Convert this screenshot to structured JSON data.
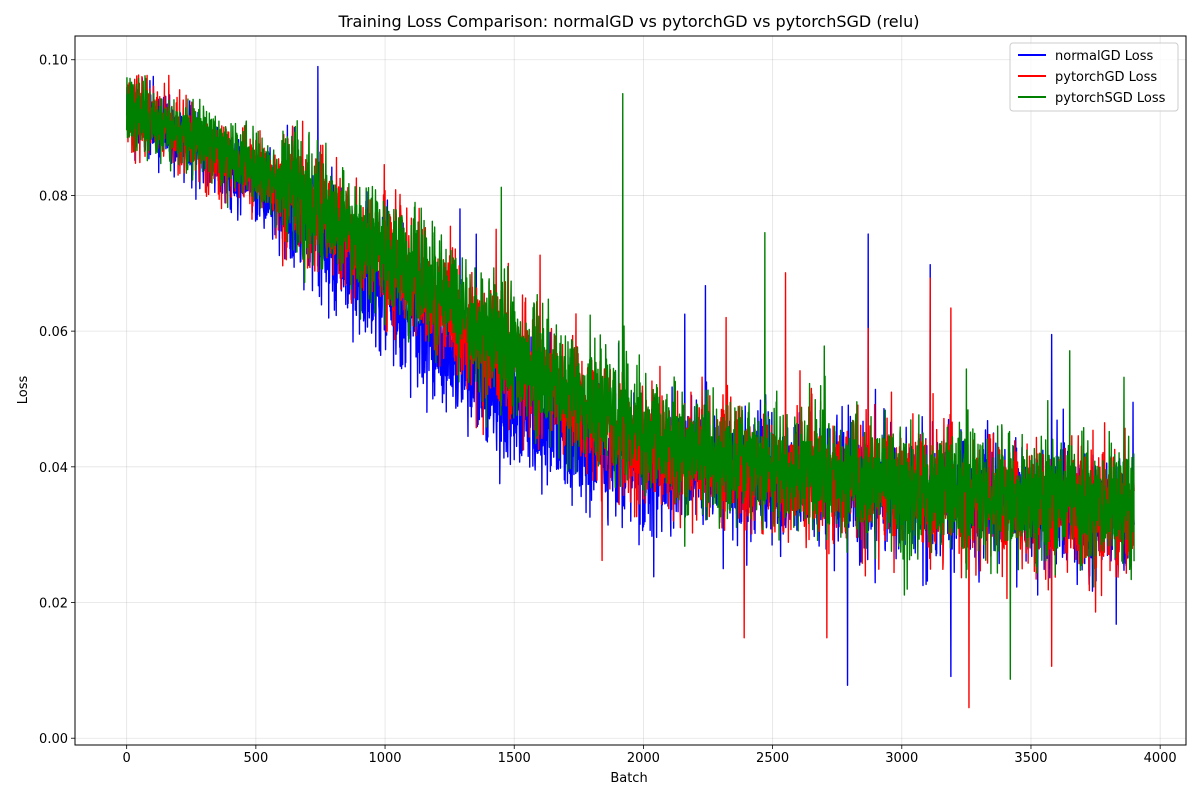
{
  "chart_data": {
    "type": "line",
    "title": "Training Loss Comparison: normalGD vs pytorchGD vs pytorchSGD (relu)",
    "xlabel": "Batch",
    "ylabel": "Loss",
    "xlim": [
      -200,
      4100
    ],
    "ylim": [
      -0.001,
      0.1035
    ],
    "xticks": [
      0,
      500,
      1000,
      1500,
      2000,
      2500,
      3000,
      3500,
      4000
    ],
    "xtick_labels": [
      "0",
      "500",
      "1000",
      "1500",
      "2000",
      "2500",
      "3000",
      "3500",
      "4000"
    ],
    "yticks": [
      0.0,
      0.02,
      0.04,
      0.06,
      0.08,
      0.1
    ],
    "ytick_labels": [
      "0.00",
      "0.02",
      "0.04",
      "0.06",
      "0.08",
      "0.10"
    ],
    "grid": true,
    "legend_position": "top-right",
    "n_batches": 3900,
    "series": [
      {
        "name": "normalGD Loss",
        "label": "normalGD Loss",
        "color": "#0000ff",
        "trend": [
          [
            0,
            0.0925
          ],
          [
            500,
            0.082
          ],
          [
            1000,
            0.066
          ],
          [
            1500,
            0.049
          ],
          [
            2000,
            0.04
          ],
          [
            2500,
            0.0385
          ],
          [
            3000,
            0.036
          ],
          [
            3500,
            0.034
          ],
          [
            3899,
            0.033
          ]
        ],
        "noise": 0.0044,
        "seed": 11,
        "spikes": [
          [
            740,
            0.099
          ],
          [
            800,
            0.0815
          ],
          [
            1290,
            0.078
          ],
          [
            2160,
            0.0625
          ],
          [
            2240,
            0.0667
          ],
          [
            2870,
            0.0743
          ],
          [
            3110,
            0.0698
          ],
          [
            3580,
            0.0595
          ],
          [
            2790,
            0.0078
          ],
          [
            3190,
            0.0091
          ],
          [
            3830,
            0.0168
          ],
          [
            2040,
            0.0238
          ],
          [
            2400,
            0.0255
          ],
          [
            3895,
            0.0495
          ]
        ]
      },
      {
        "name": "pytorchGD Loss",
        "label": "pytorchGD Loss",
        "color": "#ff0000",
        "trend": [
          [
            0,
            0.0925
          ],
          [
            500,
            0.0835
          ],
          [
            1000,
            0.0705
          ],
          [
            1500,
            0.055
          ],
          [
            2000,
            0.043
          ],
          [
            2500,
            0.039
          ],
          [
            3000,
            0.0365
          ],
          [
            3500,
            0.0345
          ],
          [
            3899,
            0.0335
          ]
        ],
        "noise": 0.0044,
        "seed": 23,
        "spikes": [
          [
            1060,
            0.0785
          ],
          [
            1430,
            0.075
          ],
          [
            1600,
            0.0712
          ],
          [
            2320,
            0.062
          ],
          [
            2550,
            0.0686
          ],
          [
            2870,
            0.0604
          ],
          [
            3110,
            0.0678
          ],
          [
            3190,
            0.0634
          ],
          [
            2390,
            0.0148
          ],
          [
            2710,
            0.0148
          ],
          [
            3260,
            0.0045
          ],
          [
            3580,
            0.0106
          ],
          [
            3750,
            0.0186
          ],
          [
            1840,
            0.0262
          ]
        ]
      },
      {
        "name": "pytorchSGD Loss",
        "label": "pytorchSGD Loss",
        "color": "#008000",
        "trend": [
          [
            0,
            0.0925
          ],
          [
            500,
            0.0845
          ],
          [
            1000,
            0.072
          ],
          [
            1500,
            0.0565
          ],
          [
            2000,
            0.0445
          ],
          [
            2500,
            0.04
          ],
          [
            3000,
            0.037
          ],
          [
            3500,
            0.035
          ],
          [
            3899,
            0.034
          ]
        ],
        "noise": 0.0043,
        "seed": 37,
        "spikes": [
          [
            105,
            0.095
          ],
          [
            660,
            0.091
          ],
          [
            1450,
            0.0812
          ],
          [
            1920,
            0.095
          ],
          [
            2470,
            0.0745
          ],
          [
            2700,
            0.0578
          ],
          [
            3250,
            0.0544
          ],
          [
            3650,
            0.0571
          ],
          [
            3420,
            0.0087
          ],
          [
            3010,
            0.0211
          ],
          [
            2160,
            0.0283
          ],
          [
            3860,
            0.0532
          ]
        ]
      }
    ]
  }
}
